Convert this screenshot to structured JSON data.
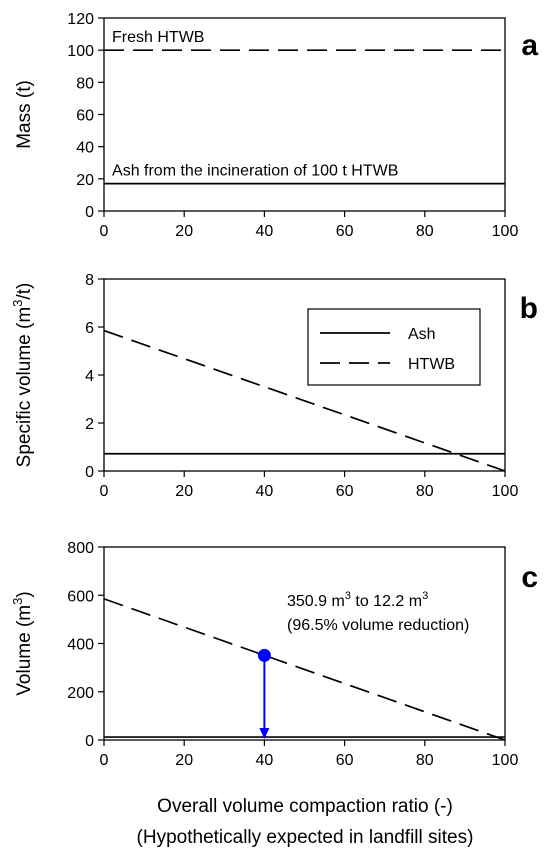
{
  "chart_data": [
    {
      "panel": "a",
      "type": "line",
      "ylabel": "Mass (t)",
      "xlim": [
        0,
        100
      ],
      "ylim": [
        0,
        120
      ],
      "xticks": [
        0,
        20,
        40,
        60,
        80,
        100
      ],
      "yticks": [
        0,
        20,
        40,
        60,
        80,
        100,
        120
      ],
      "series": [
        {
          "style": "dashed",
          "x": [
            0,
            100
          ],
          "y": [
            100,
            100
          ]
        },
        {
          "style": "solid",
          "x": [
            0,
            100
          ],
          "y": [
            17,
            17
          ]
        }
      ],
      "annotations": [
        {
          "text": "Fresh HTWB",
          "x": 2,
          "y": 105
        },
        {
          "text": "Ash from the incineration of 100 t HTWB",
          "x": 2,
          "y": 22
        }
      ]
    },
    {
      "panel": "b",
      "type": "line",
      "ylabel": "Specific volume (m³/t)",
      "xlim": [
        0,
        100
      ],
      "ylim": [
        0,
        8
      ],
      "xticks": [
        0,
        20,
        40,
        60,
        80,
        100
      ],
      "yticks": [
        0,
        2,
        4,
        6,
        8
      ],
      "legend_position": "upper-right",
      "series": [
        {
          "name": "Ash",
          "style": "solid",
          "x": [
            0,
            100
          ],
          "y": [
            0.72,
            0.72
          ]
        },
        {
          "name": "HTWB",
          "style": "dashed",
          "x": [
            0,
            100
          ],
          "y": [
            5.85,
            0
          ]
        }
      ]
    },
    {
      "panel": "c",
      "type": "line",
      "ylabel": "Volume (m³)",
      "xlabel": "Overall volume compaction ratio (-)",
      "xlabel2": "(Hypothetically expected in landfill sites)",
      "xlim": [
        0,
        100
      ],
      "ylim": [
        0,
        800
      ],
      "xticks": [
        0,
        20,
        40,
        60,
        80,
        100
      ],
      "yticks": [
        0,
        200,
        400,
        600,
        800
      ],
      "series": [
        {
          "style": "dashed",
          "x": [
            0,
            100
          ],
          "y": [
            585,
            0
          ]
        },
        {
          "style": "solid",
          "x": [
            0,
            100
          ],
          "y": [
            12.2,
            12.2
          ]
        }
      ],
      "marker": {
        "x": 40,
        "y": 350.9,
        "color": "#0000ff"
      },
      "arrow": {
        "x": 40,
        "y_from": 350.9,
        "y_to": 0,
        "color": "#0000ff"
      },
      "annotation_line1": {
        "a": "350.9 m",
        "sup1": "3",
        "b": " to 12.2 m",
        "sup2": "3"
      },
      "annotation_line2": "(96.5% volume reduction)"
    }
  ]
}
